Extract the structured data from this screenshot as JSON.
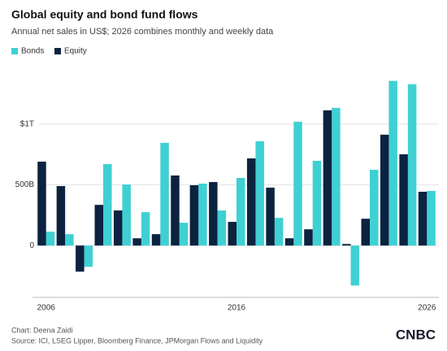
{
  "chart_data": {
    "type": "bar",
    "title": "Global equity and bond fund flows",
    "subtitle": "Annual net sales in US$; 2026 combines monthly and weekly data",
    "categories": [
      "2006",
      null,
      null,
      null,
      null,
      null,
      null,
      null,
      null,
      null,
      "2016",
      null,
      null,
      null,
      null,
      null,
      null,
      null,
      null,
      null,
      "2026"
    ],
    "series": [
      {
        "name": "Bonds",
        "color": "#3fd0d4",
        "values": [
          114,
          94,
          -175,
          671,
          503,
          275,
          846,
          188,
          510,
          289,
          557,
          859,
          228,
          1020,
          698,
          1134,
          -329,
          624,
          1356,
          1329,
          450
        ]
      },
      {
        "name": "Equity",
        "color": "#0c2340",
        "values": [
          691,
          490,
          -215,
          335,
          289,
          60,
          94,
          577,
          497,
          523,
          195,
          718,
          477,
          60,
          134,
          1114,
          13,
          221,
          913,
          752,
          443
        ]
      }
    ],
    "ylim": [
      -400,
      1400
    ],
    "yticks": [
      0,
      {
        "value": 500,
        "label": "500B"
      },
      {
        "value": 1000,
        "label": "$1T"
      }
    ],
    "grid": true,
    "legend": "top-left",
    "credit": "Chart: Deena Zaidi",
    "source": "Source: ICI, LSEG Lipper, Bloomberg Finance, JPMorgan Flows and Liquidity",
    "logo": "CNBC"
  }
}
